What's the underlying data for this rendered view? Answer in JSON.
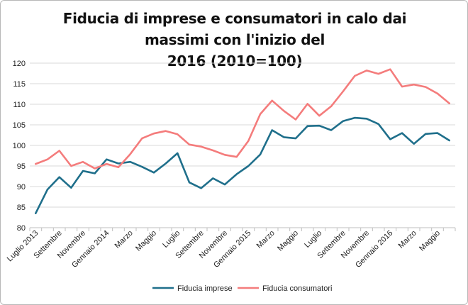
{
  "chart_data": {
    "type": "line",
    "title_line1": "Fiducia di imprese e consumatori in calo dai massimi con l'inizio del",
    "title_line2": "2016 (2010=100)",
    "xlabel": "",
    "ylabel": "",
    "ylim": [
      80,
      120
    ],
    "yticks": [
      80,
      85,
      90,
      95,
      100,
      105,
      110,
      115,
      120
    ],
    "grid": true,
    "legend_position": "bottom",
    "x_tick_labels": [
      "Luglio 2013",
      "Settembre",
      "Novembre",
      "Gennaio 2014",
      "Marzo",
      "Maggio",
      "Luglio",
      "Settembre",
      "Novembre",
      "Gennaio 2015",
      "Marzo",
      "Maggio",
      "Luglio",
      "Settembre",
      "Novembre",
      "Gennaio 2016",
      "Marzo",
      "Maggio"
    ],
    "colors": {
      "imprese": "#1f6f8b",
      "consumatori": "#f47c7c",
      "grid": "#d9d9d9",
      "axis": "#bfbfbf"
    },
    "series": [
      {
        "name": "Fiducia imprese",
        "values": [
          83.5,
          89.3,
          92.3,
          89.7,
          93.8,
          93.2,
          96.6,
          95.6,
          96.0,
          94.8,
          93.4,
          95.6,
          98.1,
          91.0,
          89.6,
          92.0,
          90.5,
          93.0,
          95.0,
          97.8,
          103.7,
          102.0,
          101.7,
          104.7,
          104.8,
          103.7,
          105.9,
          106.7,
          106.5,
          105.2,
          101.5,
          103.0,
          100.4,
          102.8,
          103.0,
          101.2
        ]
      },
      {
        "name": "Fiducia consumatori",
        "values": [
          95.5,
          96.6,
          98.7,
          95.0,
          96.0,
          94.4,
          95.5,
          94.7,
          97.9,
          101.7,
          102.9,
          103.5,
          102.7,
          100.2,
          99.7,
          98.8,
          97.7,
          97.2,
          101.1,
          107.6,
          110.9,
          108.4,
          106.3,
          110.1,
          107.2,
          109.5,
          113.1,
          116.9,
          118.2,
          117.4,
          118.5,
          114.3,
          114.8,
          114.2,
          112.6,
          110.2
        ]
      }
    ]
  }
}
